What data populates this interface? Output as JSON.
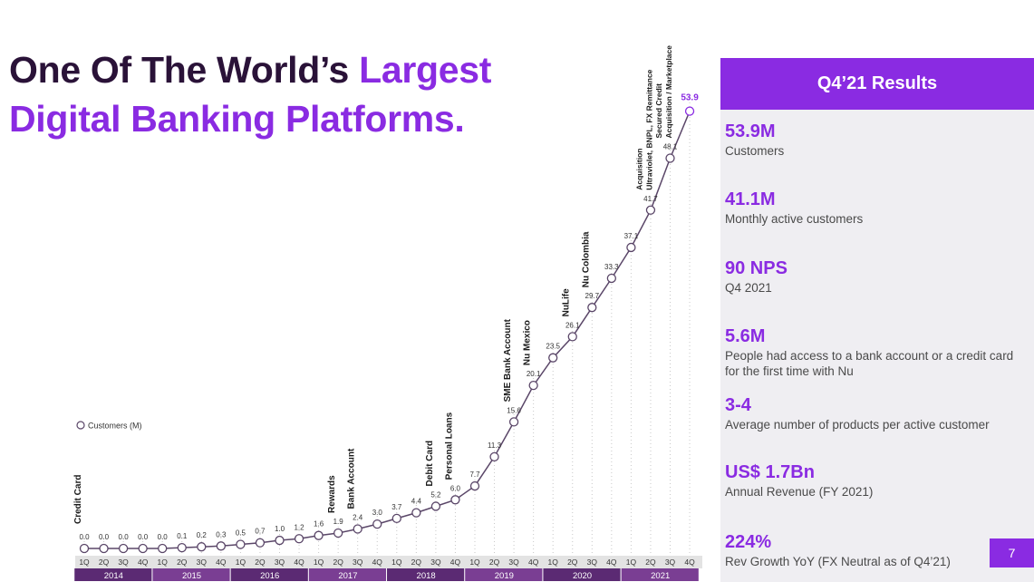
{
  "title": {
    "line1_dark": "One Of The World’s ",
    "line1_accent": "Largest",
    "line2": "Digital Banking Platforms."
  },
  "chart_data": {
    "type": "line",
    "series": [
      {
        "name": "Customers (M)",
        "values": [
          0.0,
          0.0,
          0.0,
          0.0,
          0.0,
          0.1,
          0.2,
          0.3,
          0.5,
          0.7,
          1.0,
          1.2,
          1.6,
          1.9,
          2.4,
          3.0,
          3.7,
          4.4,
          5.2,
          6.0,
          7.7,
          11.3,
          15.6,
          20.1,
          23.5,
          26.1,
          29.7,
          33.3,
          37.1,
          41.7,
          48.1,
          53.9
        ]
      }
    ],
    "value_labels": [
      "0.0",
      "0.0",
      "0.0",
      "0.0",
      "0.0",
      "0.1",
      "0.2",
      "0.3",
      "0.5",
      "0.7",
      "1.0",
      "1.2",
      "1.6",
      "1.9",
      "2.4",
      "3.0",
      "3.7",
      "4.4",
      "5.2",
      "6.0",
      "7.7",
      "11.3",
      "15.6",
      "20.1",
      "23.5",
      "26.1",
      "29.7",
      "33.3",
      "37.1",
      "41.7",
      "48.1",
      "53.9"
    ],
    "quarters": [
      "1Q",
      "2Q",
      "3Q",
      "4Q",
      "1Q",
      "2Q",
      "3Q",
      "4Q",
      "1Q",
      "2Q",
      "3Q",
      "4Q",
      "1Q",
      "2Q",
      "3Q",
      "4Q",
      "1Q",
      "2Q",
      "3Q",
      "4Q",
      "1Q",
      "2Q",
      "3Q",
      "4Q",
      "1Q",
      "2Q",
      "3Q",
      "4Q",
      "1Q",
      "2Q",
      "3Q",
      "4Q"
    ],
    "years": [
      "2014",
      "2015",
      "2016",
      "2017",
      "2018",
      "2019",
      "2020",
      "2021"
    ],
    "legend": "Customers (M)",
    "annotations": [
      {
        "index": 0,
        "lines": [
          "Credit Card"
        ]
      },
      {
        "index": 13,
        "lines": [
          "Rewards"
        ]
      },
      {
        "index": 14,
        "lines": [
          "Bank Account"
        ]
      },
      {
        "index": 18,
        "lines": [
          "Debit Card"
        ]
      },
      {
        "index": 19,
        "lines": [
          "Personal Loans"
        ]
      },
      {
        "index": 22,
        "lines": [
          "SME Bank Account"
        ]
      },
      {
        "index": 23,
        "lines": [
          "Nu Mexico"
        ]
      },
      {
        "index": 25,
        "lines": [
          "NuLife"
        ]
      },
      {
        "index": 26,
        "lines": [
          "Nu Colombia"
        ]
      },
      {
        "index": 29,
        "lines": [
          "Acquisition",
          "Ultraviolet, BNPL, FX Remittance"
        ]
      },
      {
        "index": 30,
        "lines": [
          "Secured Credit",
          "Acquisition / Marketplace"
        ]
      }
    ],
    "colors": {
      "line": "#5a4668",
      "marker_fill": "#ffffff",
      "highlight": "#8a2be2",
      "year_bar": "#5b2a73",
      "year_bar_alt": "#7a3e93",
      "quarter_bg": "#e3e3e3"
    }
  },
  "panel": {
    "header": "Q4’21 Results",
    "metrics": [
      {
        "value": "53.9M",
        "label": "Customers"
      },
      {
        "value": "41.1M",
        "label": "Monthly active customers"
      },
      {
        "value": "90 NPS",
        "label": "Q4 2021"
      },
      {
        "value": "5.6M",
        "label": "People had access to a bank account or a credit card for the first time with Nu"
      },
      {
        "value": "3-4",
        "label": "Average number of products per active customer"
      },
      {
        "value": "US$ 1.7Bn",
        "label": "Annual Revenue (FY 2021)"
      },
      {
        "value": "224%",
        "label": "Rev Growth YoY (FX Neutral as of Q4’21)"
      }
    ]
  },
  "page_number": "7"
}
